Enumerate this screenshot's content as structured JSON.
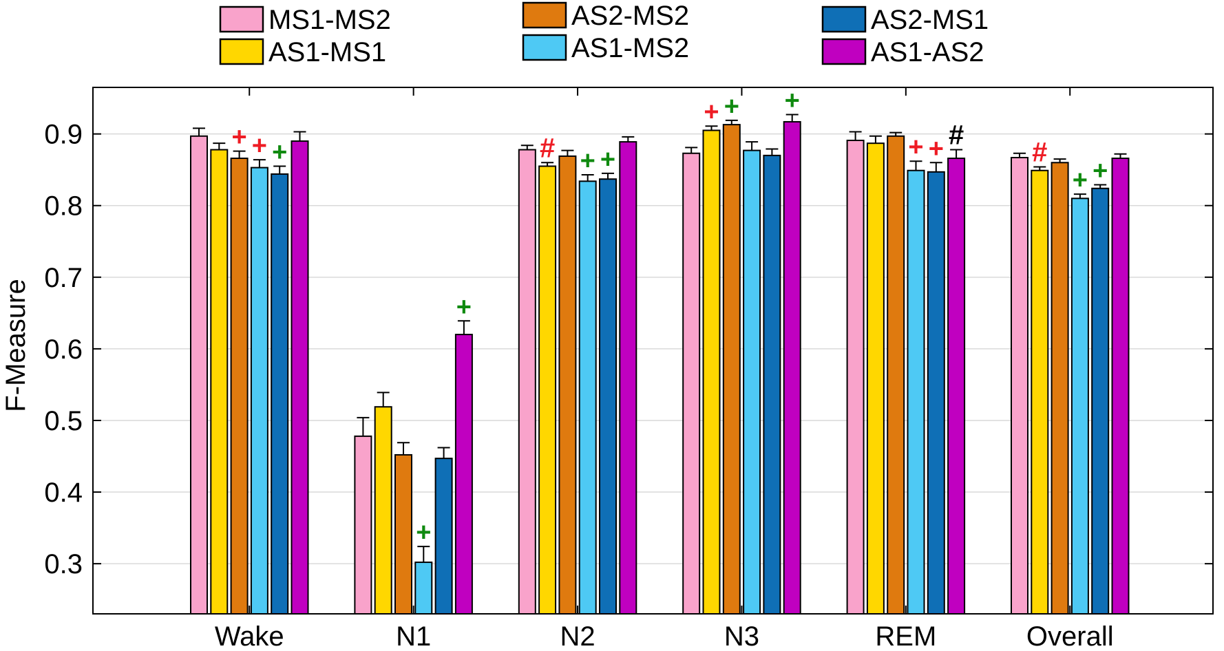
{
  "chart_data": {
    "type": "bar",
    "title": "",
    "xlabel": "",
    "ylabel": "F-Measure",
    "ylim": [
      0.23,
      0.965
    ],
    "yticks": [
      "0.3",
      "0.4",
      "0.5",
      "0.6",
      "0.7",
      "0.8",
      "0.9"
    ],
    "grid": "horizontal",
    "legend_position": "top",
    "categories": [
      "Wake",
      "N1",
      "N2",
      "N3",
      "REM",
      "Overall"
    ],
    "series": [
      {
        "name": "MS1-MS2",
        "color": "#f9a3cb",
        "values": [
          0.897,
          0.478,
          0.878,
          0.873,
          0.891,
          0.867
        ],
        "errors": [
          0.011,
          0.026,
          0.006,
          0.008,
          0.012,
          0.006
        ]
      },
      {
        "name": "AS1-MS1",
        "color": "#ffd700",
        "values": [
          0.878,
          0.519,
          0.855,
          0.905,
          0.887,
          0.849
        ],
        "errors": [
          0.009,
          0.02,
          0.005,
          0.006,
          0.01,
          0.005
        ]
      },
      {
        "name": "AS2-MS2",
        "color": "#df7a0f",
        "values": [
          0.866,
          0.452,
          0.869,
          0.913,
          0.897,
          0.86
        ],
        "errors": [
          0.01,
          0.017,
          0.008,
          0.006,
          0.005,
          0.005
        ]
      },
      {
        "name": "AS1-MS2",
        "color": "#4ec9f4",
        "values": [
          0.853,
          0.302,
          0.834,
          0.877,
          0.849,
          0.81
        ],
        "errors": [
          0.011,
          0.022,
          0.009,
          0.012,
          0.013,
          0.006
        ]
      },
      {
        "name": "AS2-MS1",
        "color": "#0f6fb6",
        "values": [
          0.844,
          0.447,
          0.837,
          0.87,
          0.847,
          0.824
        ],
        "errors": [
          0.011,
          0.015,
          0.008,
          0.009,
          0.013,
          0.005
        ]
      },
      {
        "name": "AS1-AS2",
        "color": "#c000c0",
        "values": [
          0.89,
          0.62,
          0.889,
          0.917,
          0.866,
          0.866
        ],
        "errors": [
          0.013,
          0.019,
          0.007,
          0.01,
          0.012,
          0.006
        ]
      }
    ],
    "annotations": [
      {
        "category": "Wake",
        "series": "AS2-MS2",
        "symbol": "+",
        "color": "#ee1c24"
      },
      {
        "category": "Wake",
        "series": "AS1-MS2",
        "symbol": "+",
        "color": "#ee1c24"
      },
      {
        "category": "Wake",
        "series": "AS2-MS1",
        "symbol": "+",
        "color": "#0f8a0f"
      },
      {
        "category": "N1",
        "series": "AS1-MS2",
        "symbol": "+",
        "color": "#0f8a0f"
      },
      {
        "category": "N1",
        "series": "AS1-AS2",
        "symbol": "+",
        "color": "#0f8a0f"
      },
      {
        "category": "N2",
        "series": "AS1-MS1",
        "symbol": "#",
        "color": "#ee1c24"
      },
      {
        "category": "N2",
        "series": "AS1-MS2",
        "symbol": "+",
        "color": "#0f8a0f"
      },
      {
        "category": "N2",
        "series": "AS2-MS1",
        "symbol": "+",
        "color": "#0f8a0f"
      },
      {
        "category": "N3",
        "series": "AS1-MS1",
        "symbol": "+",
        "color": "#ee1c24"
      },
      {
        "category": "N3",
        "series": "AS2-MS2",
        "symbol": "+",
        "color": "#0f8a0f"
      },
      {
        "category": "N3",
        "series": "AS1-AS2",
        "symbol": "+",
        "color": "#0f8a0f"
      },
      {
        "category": "REM",
        "series": "AS1-MS2",
        "symbol": "+",
        "color": "#ee1c24"
      },
      {
        "category": "REM",
        "series": "AS2-MS1",
        "symbol": "+",
        "color": "#ee1c24"
      },
      {
        "category": "REM",
        "series": "AS1-AS2",
        "symbol": "#",
        "color": "#000000"
      },
      {
        "category": "Overall",
        "series": "AS1-MS1",
        "symbol": "#",
        "color": "#ee1c24"
      },
      {
        "category": "Overall",
        "series": "AS1-MS2",
        "symbol": "+",
        "color": "#0f8a0f"
      },
      {
        "category": "Overall",
        "series": "AS2-MS1",
        "symbol": "+",
        "color": "#0f8a0f"
      }
    ]
  }
}
